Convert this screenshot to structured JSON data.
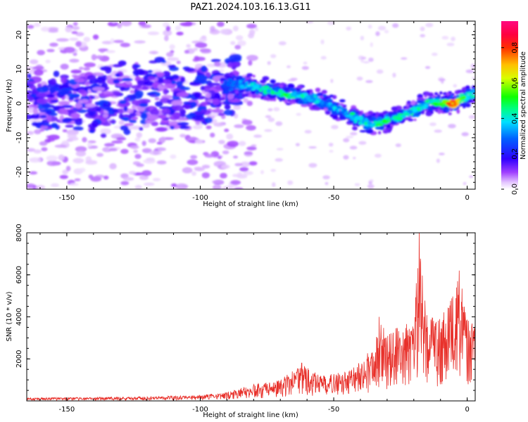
{
  "title": "PAZ1.2024.103.16.13.G11",
  "chart_data": [
    {
      "type": "heatmap",
      "xlabel": "Height of straight line (km)",
      "ylabel": "Frequency (Hz)",
      "xlim": [
        -165,
        3
      ],
      "ylim": [
        -25,
        24
      ],
      "xticks": [
        -150,
        -100,
        -50,
        0
      ],
      "yticks": [
        -20,
        -10,
        0,
        10,
        20
      ],
      "colorbar": {
        "label": "Normalized spectral amplitude",
        "range": [
          0,
          0.95
        ],
        "ticks": [
          "0.0",
          "0.2",
          "0.4",
          "0.6",
          "0.8"
        ],
        "colormap": "gist_rainbow-like (white to purple to blue to cyan to green to yellow to red to pink)"
      },
      "ridge": {
        "description": "main energy ridge (frequency vs height)",
        "x": [
          -165,
          -155,
          -145,
          -135,
          -125,
          -115,
          -105,
          -95,
          -88,
          -80,
          -70,
          -62,
          -55,
          -50,
          -45,
          -40,
          -35,
          -30,
          -25,
          -20,
          -15,
          -10,
          -5,
          0,
          3
        ],
        "y": [
          0,
          0,
          1,
          1,
          2,
          2,
          2,
          3,
          6,
          5,
          3,
          2,
          1,
          -1,
          -3,
          -5,
          -6,
          -5,
          -4,
          -2,
          0,
          0,
          0,
          2,
          3
        ],
        "amplitude": [
          0.15,
          0.2,
          0.2,
          0.2,
          0.25,
          0.2,
          0.25,
          0.25,
          0.3,
          0.45,
          0.5,
          0.45,
          0.45,
          0.4,
          0.4,
          0.5,
          0.5,
          0.55,
          0.5,
          0.45,
          0.5,
          0.55,
          0.85,
          0.5,
          0.45
        ]
      }
    },
    {
      "type": "line",
      "xlabel": "Height of straight line (km)",
      "ylabel": "SNR (10 * v/v)",
      "xlim": [
        -165,
        3
      ],
      "ylim": [
        0,
        8000
      ],
      "xticks": [
        -150,
        -100,
        -50,
        0
      ],
      "yticks": [
        2000,
        4000,
        6000,
        8000
      ],
      "series_color": "#e8302a",
      "envelope": {
        "description": "approximate upper envelope of the noisy SNR trace",
        "x": [
          -165,
          -120,
          -100,
          -90,
          -80,
          -70,
          -62,
          -55,
          -50,
          -45,
          -40,
          -35,
          -33,
          -30,
          -25,
          -20,
          -18,
          -15,
          -10,
          -5,
          -3,
          0,
          3
        ],
        "y": [
          150,
          200,
          280,
          400,
          800,
          1000,
          1800,
          1200,
          1300,
          1400,
          2000,
          2600,
          4000,
          3200,
          3600,
          3800,
          8000,
          4000,
          4100,
          5400,
          6200,
          4100,
          3500
        ]
      },
      "peaks": [
        {
          "x": -62,
          "y": 1800
        },
        {
          "x": -33,
          "y": 4000
        },
        {
          "x": -18,
          "y": 8000
        },
        {
          "x": -4,
          "y": 5400
        },
        {
          "x": -3,
          "y": 6200
        }
      ]
    }
  ]
}
